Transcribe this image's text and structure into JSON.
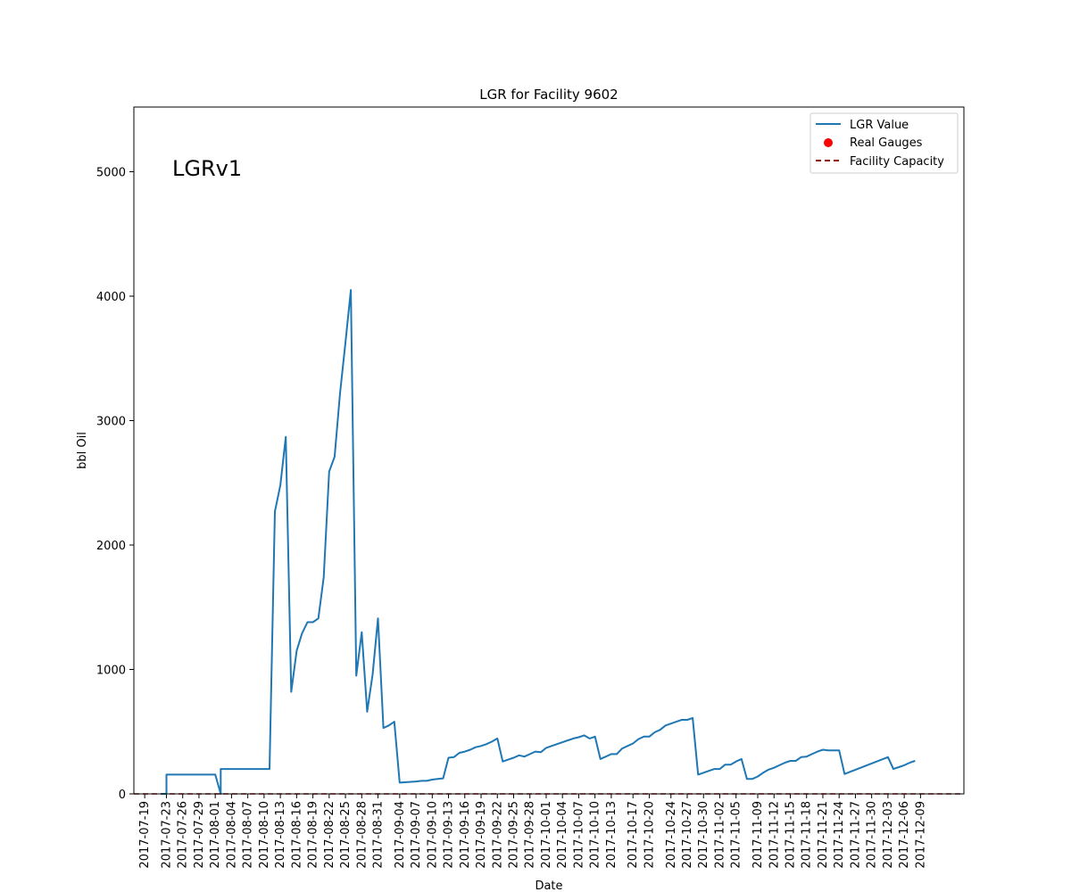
{
  "chart_data": {
    "type": "line",
    "title": "LGR for Facility 9602",
    "xlabel": "Date",
    "ylabel": "bbl Oil",
    "annotation": "LGRv1",
    "ylim": [
      0,
      5520
    ],
    "xlim": [
      "2017-07-17",
      "2017-12-17"
    ],
    "yticks": [
      0,
      1000,
      2000,
      3000,
      4000,
      5000
    ],
    "xticks": [
      "2017-07-19",
      "2017-07-23",
      "2017-07-26",
      "2017-07-29",
      "2017-08-01",
      "2017-08-04",
      "2017-08-07",
      "2017-08-10",
      "2017-08-13",
      "2017-08-16",
      "2017-08-19",
      "2017-08-22",
      "2017-08-25",
      "2017-08-28",
      "2017-08-31",
      "2017-09-04",
      "2017-09-07",
      "2017-09-10",
      "2017-09-13",
      "2017-09-16",
      "2017-09-19",
      "2017-09-22",
      "2017-09-25",
      "2017-09-28",
      "2017-10-01",
      "2017-10-04",
      "2017-10-07",
      "2017-10-10",
      "2017-10-13",
      "2017-10-17",
      "2017-10-20",
      "2017-10-24",
      "2017-10-27",
      "2017-10-30",
      "2017-11-02",
      "2017-11-05",
      "2017-11-09",
      "2017-11-12",
      "2017-11-15",
      "2017-11-18",
      "2017-11-21",
      "2017-11-24",
      "2017-11-27",
      "2017-11-30",
      "2017-12-03",
      "2017-12-06",
      "2017-12-09"
    ],
    "legend": {
      "placement": "top-right",
      "entries": [
        "LGR Value",
        "Real Gauges",
        "Facility Capacity"
      ]
    },
    "grid": false,
    "colors": {
      "lgr": "#1f77b4",
      "gauges": "#ff0000",
      "capacity": "#8b0000"
    },
    "facility_capacity": 0,
    "real_gauges": [],
    "series": [
      {
        "name": "LGR Value",
        "points": [
          [
            "2017-07-22",
            0
          ],
          [
            "2017-07-23",
            0
          ],
          [
            "2017-07-23",
            155
          ],
          [
            "2017-07-24",
            155
          ],
          [
            "2017-07-25",
            155
          ],
          [
            "2017-07-26",
            155
          ],
          [
            "2017-07-27",
            155
          ],
          [
            "2017-07-28",
            155
          ],
          [
            "2017-07-29",
            155
          ],
          [
            "2017-07-30",
            155
          ],
          [
            "2017-07-31",
            155
          ],
          [
            "2017-08-01",
            155
          ],
          [
            "2017-08-02",
            0
          ],
          [
            "2017-08-02",
            200
          ],
          [
            "2017-08-03",
            200
          ],
          [
            "2017-08-04",
            200
          ],
          [
            "2017-08-05",
            200
          ],
          [
            "2017-08-06",
            200
          ],
          [
            "2017-08-07",
            200
          ],
          [
            "2017-08-08",
            200
          ],
          [
            "2017-08-09",
            200
          ],
          [
            "2017-08-10",
            200
          ],
          [
            "2017-08-11",
            200
          ],
          [
            "2017-08-12",
            2270
          ],
          [
            "2017-08-13",
            2480
          ],
          [
            "2017-08-14",
            2870
          ],
          [
            "2017-08-15",
            820
          ],
          [
            "2017-08-16",
            1150
          ],
          [
            "2017-08-17",
            1290
          ],
          [
            "2017-08-18",
            1380
          ],
          [
            "2017-08-19",
            1380
          ],
          [
            "2017-08-20",
            1410
          ],
          [
            "2017-08-21",
            1740
          ],
          [
            "2017-08-22",
            2590
          ],
          [
            "2017-08-23",
            2710
          ],
          [
            "2017-08-24",
            3220
          ],
          [
            "2017-08-25",
            3630
          ],
          [
            "2017-08-26",
            4050
          ],
          [
            "2017-08-27",
            950
          ],
          [
            "2017-08-28",
            1300
          ],
          [
            "2017-08-29",
            660
          ],
          [
            "2017-08-30",
            960
          ],
          [
            "2017-08-31",
            1410
          ],
          [
            "2017-09-01",
            530
          ],
          [
            "2017-09-02",
            550
          ],
          [
            "2017-09-03",
            580
          ],
          [
            "2017-09-04",
            90
          ],
          [
            "2017-09-07",
            100
          ],
          [
            "2017-09-08",
            105
          ],
          [
            "2017-09-09",
            105
          ],
          [
            "2017-09-10",
            115
          ],
          [
            "2017-09-11",
            120
          ],
          [
            "2017-09-12",
            125
          ],
          [
            "2017-09-13",
            290
          ],
          [
            "2017-09-14",
            295
          ],
          [
            "2017-09-15",
            330
          ],
          [
            "2017-09-16",
            340
          ],
          [
            "2017-09-17",
            355
          ],
          [
            "2017-09-18",
            375
          ],
          [
            "2017-09-19",
            385
          ],
          [
            "2017-09-20",
            400
          ],
          [
            "2017-09-21",
            420
          ],
          [
            "2017-09-22",
            445
          ],
          [
            "2017-09-23",
            260
          ],
          [
            "2017-09-24",
            275
          ],
          [
            "2017-09-25",
            290
          ],
          [
            "2017-09-26",
            310
          ],
          [
            "2017-09-27",
            300
          ],
          [
            "2017-09-28",
            320
          ],
          [
            "2017-09-29",
            340
          ],
          [
            "2017-09-30",
            335
          ],
          [
            "2017-10-01",
            370
          ],
          [
            "2017-10-02",
            385
          ],
          [
            "2017-10-03",
            400
          ],
          [
            "2017-10-04",
            415
          ],
          [
            "2017-10-05",
            430
          ],
          [
            "2017-10-06",
            445
          ],
          [
            "2017-10-07",
            455
          ],
          [
            "2017-10-08",
            470
          ],
          [
            "2017-10-09",
            445
          ],
          [
            "2017-10-10",
            460
          ],
          [
            "2017-10-11",
            280
          ],
          [
            "2017-10-12",
            300
          ],
          [
            "2017-10-13",
            320
          ],
          [
            "2017-10-14",
            320
          ],
          [
            "2017-10-15",
            365
          ],
          [
            "2017-10-16",
            385
          ],
          [
            "2017-10-17",
            405
          ],
          [
            "2017-10-18",
            440
          ],
          [
            "2017-10-19",
            460
          ],
          [
            "2017-10-20",
            460
          ],
          [
            "2017-10-21",
            495
          ],
          [
            "2017-10-22",
            515
          ],
          [
            "2017-10-23",
            550
          ],
          [
            "2017-10-24",
            565
          ],
          [
            "2017-10-25",
            580
          ],
          [
            "2017-10-26",
            595
          ],
          [
            "2017-10-27",
            595
          ],
          [
            "2017-10-28",
            610
          ],
          [
            "2017-10-29",
            155
          ],
          [
            "2017-10-30",
            170
          ],
          [
            "2017-10-31",
            185
          ],
          [
            "2017-11-01",
            200
          ],
          [
            "2017-11-02",
            200
          ],
          [
            "2017-11-03",
            235
          ],
          [
            "2017-11-04",
            235
          ],
          [
            "2017-11-05",
            260
          ],
          [
            "2017-11-06",
            280
          ],
          [
            "2017-11-07",
            120
          ],
          [
            "2017-11-08",
            120
          ],
          [
            "2017-11-09",
            140
          ],
          [
            "2017-11-10",
            170
          ],
          [
            "2017-11-11",
            195
          ],
          [
            "2017-11-12",
            210
          ],
          [
            "2017-11-13",
            230
          ],
          [
            "2017-11-14",
            250
          ],
          [
            "2017-11-15",
            265
          ],
          [
            "2017-11-16",
            265
          ],
          [
            "2017-11-17",
            295
          ],
          [
            "2017-11-18",
            300
          ],
          [
            "2017-11-19",
            320
          ],
          [
            "2017-11-20",
            340
          ],
          [
            "2017-11-21",
            355
          ],
          [
            "2017-11-22",
            350
          ],
          [
            "2017-11-23",
            350
          ],
          [
            "2017-11-24",
            350
          ],
          [
            "2017-11-25",
            160
          ],
          [
            "2017-12-03",
            295
          ],
          [
            "2017-12-04",
            200
          ],
          [
            "2017-12-05",
            215
          ],
          [
            "2017-12-06",
            230
          ],
          [
            "2017-12-07",
            250
          ],
          [
            "2017-12-08",
            265
          ]
        ]
      }
    ]
  }
}
